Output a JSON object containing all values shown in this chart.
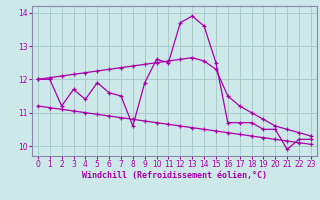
{
  "xlabel": "Windchill (Refroidissement éolien,°C)",
  "background_color": "#cce8e8",
  "grid_color": "#aacccc",
  "line_color": "#aa00aa",
  "spine_color": "#8888aa",
  "zigzag_x": [
    0,
    1,
    2,
    3,
    4,
    5,
    6,
    7,
    8,
    9,
    10,
    11,
    12,
    13,
    14,
    15,
    16,
    17,
    18,
    19,
    20,
    21,
    22,
    23
  ],
  "zigzag_y": [
    12.0,
    12.0,
    11.2,
    11.7,
    11.4,
    11.9,
    11.6,
    11.5,
    10.6,
    11.9,
    12.6,
    12.5,
    13.7,
    13.9,
    13.6,
    12.5,
    10.7,
    10.7,
    10.7,
    10.5,
    10.5,
    9.9,
    10.2,
    10.2
  ],
  "trend_upper_x": [
    0,
    1,
    2,
    3,
    4,
    5,
    6,
    7,
    8,
    9,
    10,
    11,
    12,
    13,
    14,
    15,
    16,
    17,
    18,
    19,
    20,
    21,
    22,
    23
  ],
  "trend_upper_y": [
    12.0,
    12.05,
    12.1,
    12.15,
    12.2,
    12.25,
    12.3,
    12.35,
    12.4,
    12.45,
    12.5,
    12.55,
    12.6,
    12.65,
    12.55,
    12.3,
    11.5,
    11.2,
    11.0,
    10.8,
    10.6,
    10.5,
    10.4,
    10.3
  ],
  "trend_lower_x": [
    0,
    1,
    2,
    3,
    4,
    5,
    6,
    7,
    8,
    9,
    10,
    11,
    12,
    13,
    14,
    15,
    16,
    17,
    18,
    19,
    20,
    21,
    22,
    23
  ],
  "trend_lower_y": [
    11.2,
    11.15,
    11.1,
    11.05,
    11.0,
    10.95,
    10.9,
    10.85,
    10.8,
    10.75,
    10.7,
    10.65,
    10.6,
    10.55,
    10.5,
    10.45,
    10.4,
    10.35,
    10.3,
    10.25,
    10.2,
    10.15,
    10.1,
    10.05
  ],
  "ylim": [
    9.7,
    14.2
  ],
  "xlim": [
    -0.5,
    23.5
  ],
  "yticks": [
    10,
    11,
    12,
    13,
    14
  ],
  "xticks": [
    0,
    1,
    2,
    3,
    4,
    5,
    6,
    7,
    8,
    9,
    10,
    11,
    12,
    13,
    14,
    15,
    16,
    17,
    18,
    19,
    20,
    21,
    22,
    23
  ],
  "xlabel_fontsize": 6,
  "tick_fontsize": 5.5
}
